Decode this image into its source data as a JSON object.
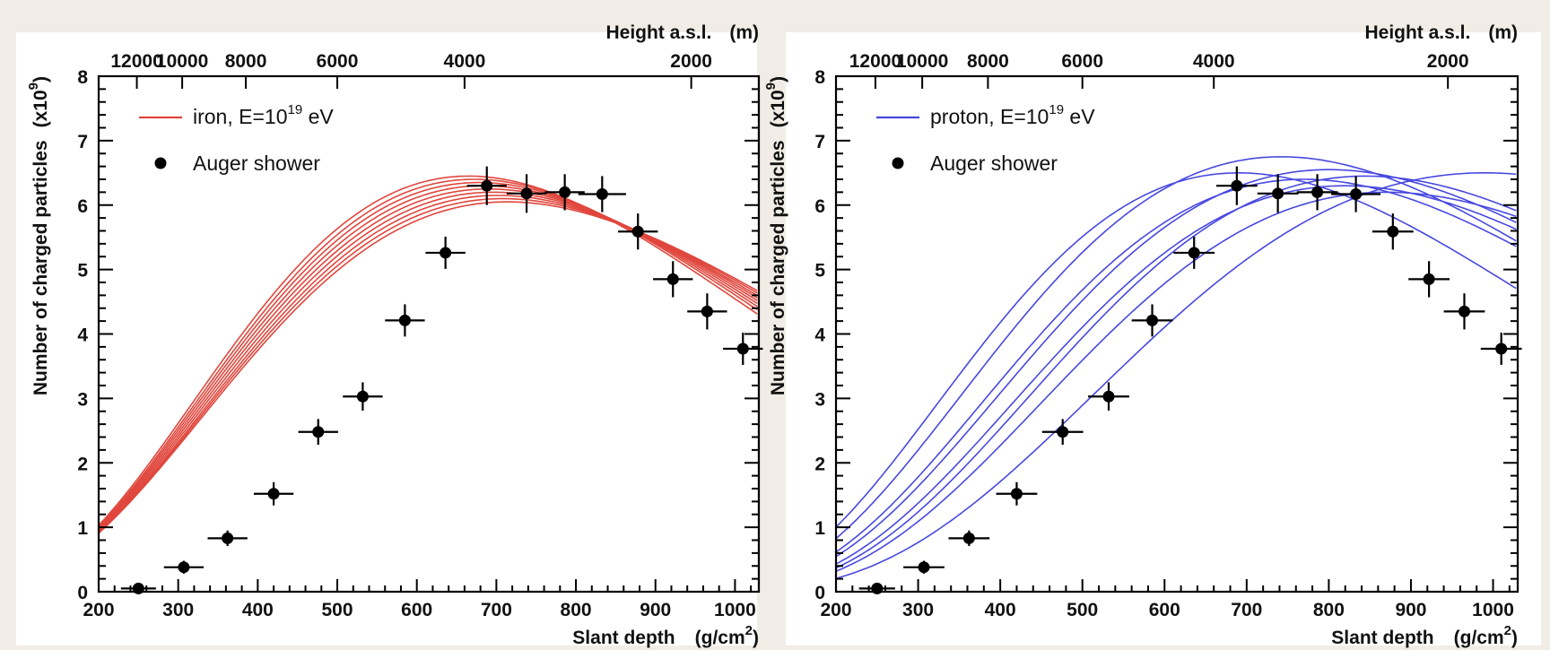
{
  "chart_data": [
    {
      "type": "line",
      "panel": "left",
      "color": "#e0473d",
      "xlabel": "Slant depth",
      "xunit": "(g/cm",
      "xunit_sup": "2",
      "xunit_close": ")",
      "ylabel": "Number of charged particles",
      "yunit": "(x10",
      "yunit_sup": "9",
      "yunit_close": ")",
      "toplabel": "Height a.s.l.",
      "topunit": "(m)",
      "xlim": [
        200,
        1030
      ],
      "ylim": [
        0,
        8
      ],
      "xticks": [
        200,
        300,
        400,
        500,
        600,
        700,
        800,
        900,
        1000
      ],
      "yticks": [
        0,
        1,
        2,
        3,
        4,
        5,
        6,
        7,
        8
      ],
      "top_ticks": [
        {
          "label": "12000",
          "x": 248
        },
        {
          "label": "10000",
          "x": 305
        },
        {
          "label": "8000",
          "x": 385
        },
        {
          "label": "6000",
          "x": 500
        },
        {
          "label": "4000",
          "x": 660
        },
        {
          "label": "2000",
          "x": 945
        }
      ],
      "legend": {
        "line_label": "iron, E=10",
        "line_label_sup": "19",
        "line_label_tail": " eV",
        "points_label": "Auger shower"
      },
      "series": [
        {
          "peak": 6.45,
          "xmax": 665,
          "width": 182
        },
        {
          "peak": 6.4,
          "xmax": 672,
          "width": 185
        },
        {
          "peak": 6.35,
          "xmax": 678,
          "width": 188
        },
        {
          "peak": 6.3,
          "xmax": 684,
          "width": 191
        },
        {
          "peak": 6.25,
          "xmax": 690,
          "width": 194
        },
        {
          "peak": 6.2,
          "xmax": 696,
          "width": 197
        },
        {
          "peak": 6.15,
          "xmax": 702,
          "width": 200
        },
        {
          "peak": 6.1,
          "xmax": 708,
          "width": 204
        },
        {
          "peak": 6.05,
          "xmax": 714,
          "width": 208
        }
      ],
      "points": [
        {
          "x": 250,
          "y": 0.05,
          "xerr": 22,
          "yerr": 0.08
        },
        {
          "x": 307,
          "y": 0.38,
          "xerr": 25,
          "yerr": 0.1
        },
        {
          "x": 362,
          "y": 0.83,
          "xerr": 25,
          "yerr": 0.12
        },
        {
          "x": 420,
          "y": 1.52,
          "xerr": 25,
          "yerr": 0.18
        },
        {
          "x": 476,
          "y": 2.48,
          "xerr": 25,
          "yerr": 0.2
        },
        {
          "x": 532,
          "y": 3.03,
          "xerr": 25,
          "yerr": 0.22
        },
        {
          "x": 585,
          "y": 4.21,
          "xerr": 25,
          "yerr": 0.25
        },
        {
          "x": 636,
          "y": 5.26,
          "xerr": 25,
          "yerr": 0.25
        },
        {
          "x": 688,
          "y": 6.3,
          "xerr": 25,
          "yerr": 0.3
        },
        {
          "x": 738,
          "y": 6.18,
          "xerr": 25,
          "yerr": 0.3
        },
        {
          "x": 786,
          "y": 6.2,
          "xerr": 25,
          "yerr": 0.28
        },
        {
          "x": 833,
          "y": 6.17,
          "xerr": 30,
          "yerr": 0.28
        },
        {
          "x": 878,
          "y": 5.59,
          "xerr": 25,
          "yerr": 0.28
        },
        {
          "x": 922,
          "y": 4.85,
          "xerr": 25,
          "yerr": 0.28
        },
        {
          "x": 965,
          "y": 4.35,
          "xerr": 25,
          "yerr": 0.28
        },
        {
          "x": 1010,
          "y": 3.77,
          "xerr": 25,
          "yerr": 0.25
        }
      ]
    },
    {
      "type": "line",
      "panel": "right",
      "color": "#4848e0",
      "xlabel": "Slant depth",
      "xunit": "(g/cm",
      "xunit_sup": "2",
      "xunit_close": ")",
      "ylabel": "Number of charged particles",
      "yunit": "(x10",
      "yunit_sup": "9",
      "yunit_close": ")",
      "toplabel": "Height a.s.l.",
      "topunit": "(m)",
      "xlim": [
        200,
        1030
      ],
      "ylim": [
        0,
        8
      ],
      "xticks": [
        200,
        300,
        400,
        500,
        600,
        700,
        800,
        900,
        1000
      ],
      "yticks": [
        0,
        1,
        2,
        3,
        4,
        5,
        6,
        7,
        8
      ],
      "top_ticks": [
        {
          "label": "12000",
          "x": 248
        },
        {
          "label": "10000",
          "x": 305
        },
        {
          "label": "8000",
          "x": 385
        },
        {
          "label": "6000",
          "x": 500
        },
        {
          "label": "4000",
          "x": 660
        },
        {
          "label": "2000",
          "x": 945
        }
      ],
      "legend": {
        "line_label": "proton, E=10",
        "line_label_sup": "19",
        "line_label_tail": " eV",
        "points_label": "Auger shower"
      },
      "series": [
        {
          "peak": 6.5,
          "xmax": 690,
          "width": 195
        },
        {
          "peak": 6.75,
          "xmax": 742,
          "width": 205
        },
        {
          "peak": 6.4,
          "xmax": 770,
          "width": 200
        },
        {
          "peak": 6.55,
          "xmax": 800,
          "width": 205
        },
        {
          "peak": 6.3,
          "xmax": 820,
          "width": 200
        },
        {
          "peak": 6.45,
          "xmax": 845,
          "width": 200
        },
        {
          "peak": 6.2,
          "xmax": 870,
          "width": 205
        },
        {
          "peak": 6.5,
          "xmax": 990,
          "width": 230
        }
      ],
      "points": [
        {
          "x": 250,
          "y": 0.05,
          "xerr": 22,
          "yerr": 0.08
        },
        {
          "x": 307,
          "y": 0.38,
          "xerr": 25,
          "yerr": 0.1
        },
        {
          "x": 362,
          "y": 0.83,
          "xerr": 25,
          "yerr": 0.12
        },
        {
          "x": 420,
          "y": 1.52,
          "xerr": 25,
          "yerr": 0.18
        },
        {
          "x": 476,
          "y": 2.48,
          "xerr": 25,
          "yerr": 0.2
        },
        {
          "x": 532,
          "y": 3.03,
          "xerr": 25,
          "yerr": 0.22
        },
        {
          "x": 585,
          "y": 4.21,
          "xerr": 25,
          "yerr": 0.25
        },
        {
          "x": 636,
          "y": 5.26,
          "xerr": 25,
          "yerr": 0.25
        },
        {
          "x": 688,
          "y": 6.3,
          "xerr": 25,
          "yerr": 0.3
        },
        {
          "x": 738,
          "y": 6.18,
          "xerr": 25,
          "yerr": 0.3
        },
        {
          "x": 786,
          "y": 6.2,
          "xerr": 25,
          "yerr": 0.28
        },
        {
          "x": 833,
          "y": 6.17,
          "xerr": 30,
          "yerr": 0.28
        },
        {
          "x": 878,
          "y": 5.59,
          "xerr": 25,
          "yerr": 0.28
        },
        {
          "x": 922,
          "y": 4.85,
          "xerr": 25,
          "yerr": 0.28
        },
        {
          "x": 965,
          "y": 4.35,
          "xerr": 25,
          "yerr": 0.28
        },
        {
          "x": 1010,
          "y": 3.77,
          "xerr": 25,
          "yerr": 0.25
        }
      ]
    }
  ]
}
